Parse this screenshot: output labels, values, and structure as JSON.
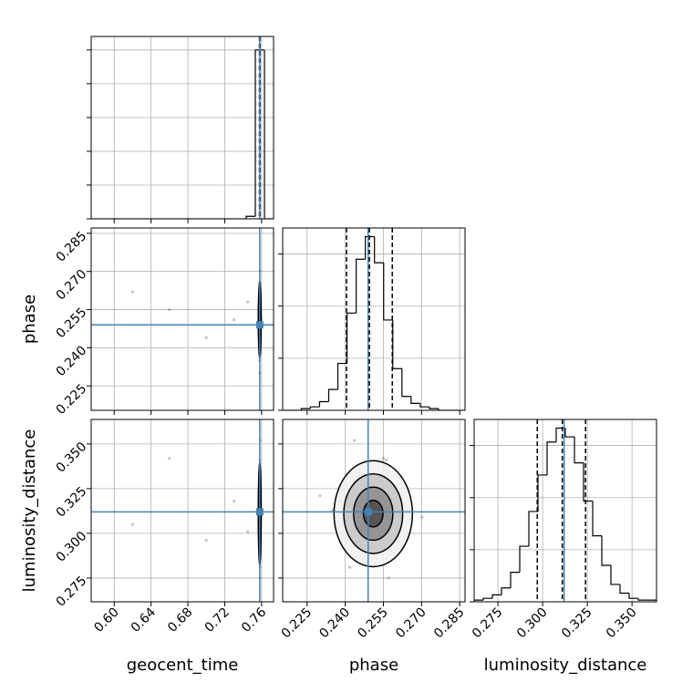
{
  "chart_data": {
    "type": "corner",
    "truth_color": "#4682b4",
    "grid": true,
    "parameters": [
      {
        "name": "geocent_time",
        "lim": [
          0.575,
          0.773
        ],
        "ticks": [
          {
            "value": 0.6,
            "label": "0.60"
          },
          0.64,
          0.68,
          0.72,
          0.76
        ],
        "truth": 0.758,
        "quantiles": [
          0.7577,
          0.758,
          0.7584
        ],
        "bins": [
          0.575,
          0.5849,
          0.5948,
          0.6047,
          0.6146,
          0.6245,
          0.6344,
          0.6443,
          0.6542,
          0.6641,
          0.674,
          0.6839,
          0.6938,
          0.7037,
          0.7136,
          0.7235,
          0.7334,
          0.7433,
          0.7532,
          0.7631,
          0.773
        ],
        "counts": [
          0,
          0,
          0,
          0,
          0,
          0,
          0,
          0,
          0,
          0,
          0,
          0,
          0,
          0,
          0,
          0,
          0,
          1.5,
          100,
          0
        ],
        "hist_ylim": [
          0,
          108
        ],
        "hist_yticks": [
          0,
          20,
          40,
          60,
          80,
          100
        ],
        "samples": [
          0.758,
          0.7585,
          0.7578,
          0.7582,
          0.7575,
          0.7588,
          0.758,
          0.7583,
          0.7579,
          0.7586,
          0.7581,
          0.7577,
          0.7584,
          0.758,
          0.7587,
          0.7576,
          0.7582,
          0.7579,
          0.7585,
          0.758,
          0.7583,
          0.7578,
          0.7581,
          0.7586,
          0.7577,
          0.7584,
          0.758,
          0.7582,
          0.7579,
          0.7585,
          0.62,
          0.66,
          0.7,
          0.73,
          0.745,
          0.7581,
          0.7583,
          0.7578,
          0.7584,
          0.758
        ]
      },
      {
        "name": "phase",
        "lim": [
          0.2154,
          0.2871
        ],
        "ticks": [
          0.225,
          {
            "value": 0.24,
            "label": "0.240"
          },
          0.255,
          {
            "value": 0.27,
            "label": "0.270"
          },
          0.285
        ],
        "truth": 0.249,
        "quantiles": [
          0.2405,
          0.2495,
          0.2585
        ],
        "bins": [
          0.2155,
          0.2191,
          0.2227,
          0.2263,
          0.2299,
          0.2335,
          0.2371,
          0.2407,
          0.2443,
          0.2479,
          0.2515,
          0.2551,
          0.2587,
          0.2623,
          0.2659,
          0.2695,
          0.2731,
          0.2767,
          0.2803,
          0.2839,
          0.2875
        ],
        "counts": [
          0,
          0,
          1,
          2,
          5,
          12,
          27,
          56,
          87,
          100,
          85,
          52,
          24,
          8,
          4,
          2,
          1,
          0,
          0,
          0
        ],
        "hist_ylim": [
          0,
          105
        ],
        "hist_yticks": [
          0,
          30,
          60,
          90
        ],
        "samples": [
          0.2495,
          0.255,
          0.243,
          0.2601,
          0.238,
          0.252,
          0.247,
          0.2655,
          0.2512,
          0.2402,
          0.2468,
          0.2533,
          0.2445,
          0.2581,
          0.2495,
          0.2351,
          0.2562,
          0.2478,
          0.2702,
          0.2524,
          0.2418,
          0.2489,
          0.2548,
          0.2436,
          0.2612,
          0.2505,
          0.2301,
          0.2571,
          0.2459,
          0.2517,
          0.262,
          0.255,
          0.244,
          0.251,
          0.258,
          0.2482,
          0.2538,
          0.2427,
          0.2596,
          0.2502
        ]
      },
      {
        "name": "luminosity_distance",
        "lim": [
          0.2617,
          0.3637
        ],
        "ticks": [
          0.275,
          {
            "value": 0.3,
            "label": "0.300"
          },
          0.325,
          {
            "value": 0.35,
            "label": "0.350"
          }
        ],
        "truth": 0.312,
        "quantiles": [
          0.297,
          0.311,
          0.324
        ],
        "bins": [
          0.2617,
          0.2668,
          0.2719,
          0.277,
          0.2821,
          0.2872,
          0.2923,
          0.2974,
          0.3025,
          0.3076,
          0.3127,
          0.3178,
          0.3229,
          0.328,
          0.3331,
          0.3382,
          0.3433,
          0.3484,
          0.3535,
          0.3586,
          0.3637
        ],
        "counts": [
          1,
          2,
          4,
          8,
          17,
          32,
          52,
          73,
          92,
          100,
          95,
          80,
          58,
          38,
          21,
          10,
          5,
          2,
          1,
          1
        ],
        "hist_ylim": [
          0,
          105
        ],
        "hist_yticks": [
          0,
          30,
          60,
          90
        ],
        "samples": [
          0.311,
          0.3,
          0.322,
          0.305,
          0.318,
          0.292,
          0.315,
          0.308,
          0.334,
          0.298,
          0.327,
          0.311,
          0.287,
          0.319,
          0.303,
          0.313,
          0.341,
          0.296,
          0.309,
          0.324,
          0.281,
          0.316,
          0.306,
          0.352,
          0.312,
          0.299,
          0.321,
          0.275,
          0.314,
          0.33,
          0.305,
          0.342,
          0.296,
          0.318,
          0.301,
          0.308,
          0.326,
          0.293,
          0.317,
          0.31
        ]
      }
    ]
  }
}
